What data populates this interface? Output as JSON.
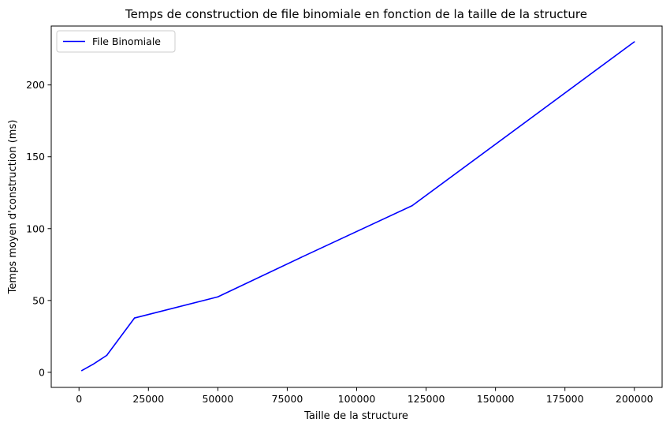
{
  "chart_data": {
    "type": "line",
    "title": "Temps de construction de file binomiale en fonction de la taille de la structure",
    "xlabel": "Taille de la structure",
    "ylabel": "Temps moyen d'construction (ms)",
    "xlim": [
      -10000,
      210000
    ],
    "ylim": [
      -10.5,
      241
    ],
    "xticks": [
      0,
      25000,
      50000,
      75000,
      100000,
      125000,
      150000,
      175000,
      200000
    ],
    "yticks": [
      0,
      50,
      100,
      150,
      200
    ],
    "grid": false,
    "legend_position": "top-left",
    "series": [
      {
        "name": "File Binomiale",
        "color": "#0000ff",
        "x": [
          1000,
          5000,
          10000,
          20000,
          50000,
          80000,
          120000,
          200000
        ],
        "y": [
          1.2,
          5.5,
          11.8,
          37.8,
          52.5,
          80,
          116,
          230
        ]
      }
    ]
  }
}
